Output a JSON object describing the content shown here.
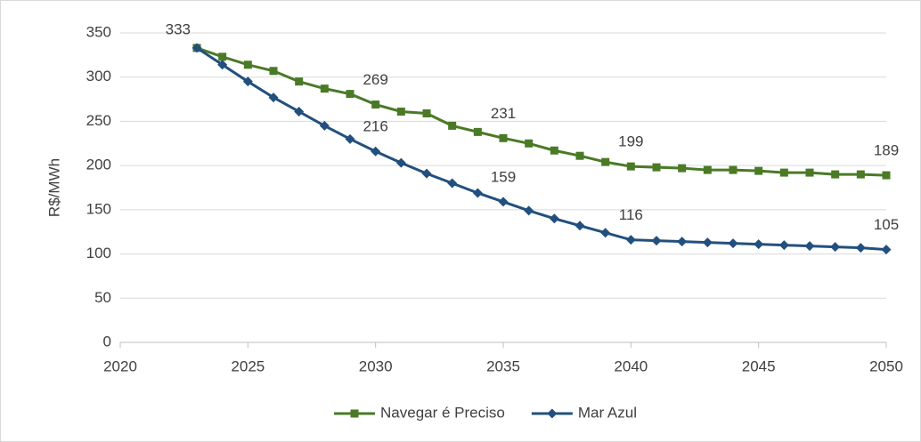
{
  "chart_data": {
    "type": "line",
    "y_label": "R$/MWh",
    "x": [
      2023,
      2024,
      2025,
      2026,
      2027,
      2028,
      2029,
      2030,
      2031,
      2032,
      2033,
      2034,
      2035,
      2036,
      2037,
      2038,
      2039,
      2040,
      2041,
      2042,
      2043,
      2044,
      2045,
      2046,
      2047,
      2048,
      2049,
      2050
    ],
    "series": [
      {
        "name": "Navegar é Preciso",
        "color": "#4a7a26",
        "marker": "square",
        "values": [
          333,
          323,
          314,
          307,
          295,
          287,
          281,
          269,
          261,
          259,
          245,
          238,
          231,
          225,
          217,
          211,
          204,
          199,
          198,
          197,
          195,
          195,
          194,
          192,
          192,
          190,
          190,
          189
        ],
        "value_labels": [
          "333",
          null,
          null,
          null,
          null,
          null,
          null,
          "269",
          null,
          null,
          null,
          null,
          "231",
          null,
          null,
          null,
          null,
          "199",
          null,
          null,
          null,
          null,
          null,
          null,
          null,
          null,
          null,
          "189"
        ]
      },
      {
        "name": "Mar Azul",
        "color": "#22507e",
        "marker": "diamond",
        "values": [
          333,
          314,
          295,
          277,
          261,
          245,
          230,
          216,
          203,
          191,
          180,
          169,
          159,
          149,
          140,
          132,
          124,
          116,
          115,
          114,
          113,
          112,
          111,
          110,
          109,
          108,
          107,
          105
        ],
        "value_labels": [
          null,
          null,
          null,
          null,
          null,
          null,
          null,
          "216",
          null,
          null,
          null,
          null,
          "159",
          null,
          null,
          null,
          null,
          "116",
          null,
          null,
          null,
          null,
          null,
          null,
          null,
          null,
          null,
          "105"
        ]
      }
    ],
    "xlim": [
      2020,
      2050
    ],
    "xticks": [
      2020,
      2025,
      2030,
      2035,
      2040,
      2045,
      2050
    ],
    "ylim": [
      0,
      350
    ],
    "yticks": [
      0,
      50,
      100,
      150,
      200,
      250,
      300,
      350
    ],
    "grid": true,
    "legend": "bottom"
  }
}
